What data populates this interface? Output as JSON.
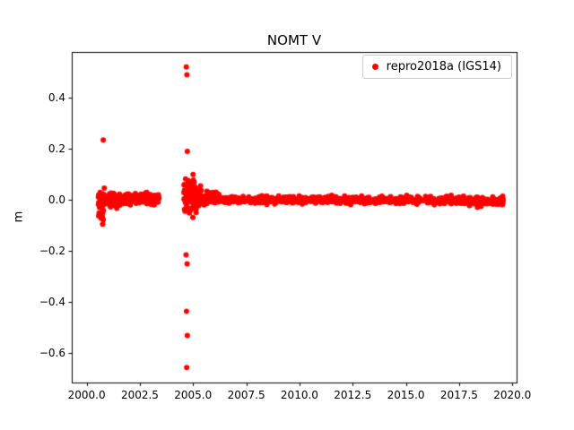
{
  "chart_data": {
    "type": "scatter",
    "title": "NOMT V",
    "xlabel": "",
    "ylabel": "m",
    "xlim": [
      1999.3,
      2020.2
    ],
    "ylim": [
      -0.714,
      0.579
    ],
    "xticks": [
      2000.0,
      2002.5,
      2005.0,
      2007.5,
      2010.0,
      2012.5,
      2015.0,
      2017.5,
      2020.0
    ],
    "xtick_labels": [
      "2000.0",
      "2002.5",
      "2005.0",
      "2007.5",
      "2010.0",
      "2012.5",
      "2015.0",
      "2017.5",
      "2020.0"
    ],
    "yticks": [
      -0.6,
      -0.4,
      -0.2,
      0.0,
      0.2,
      0.4
    ],
    "ytick_labels": [
      "−0.6",
      "−0.4",
      "−0.2",
      "0.0",
      "0.2",
      "0.4"
    ],
    "grid": false,
    "legend": {
      "label": "repro2018a (IGS14)",
      "position": "upper right"
    },
    "marker": {
      "color": "#ff0000",
      "radius": 3
    },
    "seed": 42,
    "series": [
      {
        "name": "repro2018a (IGS14)",
        "color": "#ff0000",
        "clusters": [
          {
            "x_start": 2000.55,
            "x_end": 2000.85,
            "n": 45,
            "y_mean": -0.005,
            "y_sigma": 0.025
          },
          {
            "x_start": 2000.6,
            "x_end": 2000.8,
            "n": 8,
            "y_mean": -0.055,
            "y_sigma": 0.015
          },
          {
            "x_start": 2000.85,
            "x_end": 2003.4,
            "n": 270,
            "y_mean": 0.004,
            "y_sigma": 0.01
          },
          {
            "x_start": 2001.0,
            "x_end": 2001.7,
            "n": 14,
            "y_mean": -0.015,
            "y_sigma": 0.012
          },
          {
            "x_start": 2002.4,
            "x_end": 2003.4,
            "n": 60,
            "y_mean": 0.008,
            "y_sigma": 0.006
          },
          {
            "x_start": 2004.55,
            "x_end": 2005.15,
            "n": 85,
            "y_mean": 0.01,
            "y_sigma": 0.03
          },
          {
            "x_start": 2005.15,
            "x_end": 2006.3,
            "n": 60,
            "y_mean": 0.008,
            "y_sigma": 0.014
          },
          {
            "x_start": 2005.15,
            "x_end": 2019.6,
            "n": 760,
            "y_mean": 0.0,
            "y_sigma": 0.007
          },
          {
            "x_start": 2017.3,
            "x_end": 2019.6,
            "n": 70,
            "y_mean": -0.012,
            "y_sigma": 0.007
          }
        ],
        "outliers": [
          [
            2000.78,
            0.235
          ],
          [
            2000.75,
            -0.095
          ],
          [
            2004.68,
            0.52
          ],
          [
            2004.71,
            0.49
          ],
          [
            2004.73,
            0.19
          ],
          [
            2004.67,
            -0.215
          ],
          [
            2004.72,
            -0.25
          ],
          [
            2004.69,
            -0.435
          ],
          [
            2004.73,
            -0.53
          ],
          [
            2004.7,
            -0.655
          ],
          [
            2005.0,
            0.1
          ],
          [
            2005.05,
            0.07
          ],
          [
            2005.35,
            0.055
          ]
        ]
      }
    ]
  }
}
